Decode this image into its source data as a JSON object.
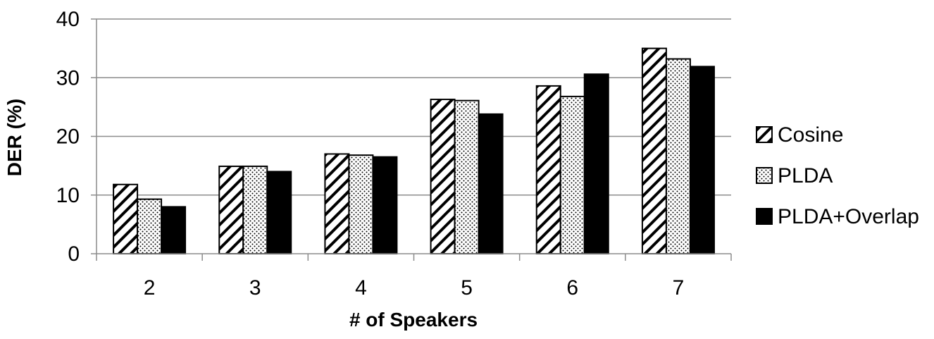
{
  "chart_data": {
    "type": "bar",
    "title": "",
    "xlabel": "# of Speakers",
    "ylabel": "DER (%)",
    "categories": [
      "2",
      "3",
      "4",
      "5",
      "6",
      "7"
    ],
    "ylim": [
      0,
      40
    ],
    "yticks": [
      0,
      10,
      20,
      30,
      40
    ],
    "grid": "horizontal",
    "legend": "right",
    "series": [
      {
        "name": "Cosine",
        "pattern": "diagonal-hatch",
        "values": [
          11.8,
          14.9,
          17.0,
          26.3,
          28.6,
          35.0
        ]
      },
      {
        "name": "PLDA",
        "pattern": "dotted",
        "values": [
          9.3,
          14.9,
          16.8,
          26.1,
          26.8,
          33.2
        ]
      },
      {
        "name": "PLDA+Overlap",
        "pattern": "solid-black",
        "values": [
          8.0,
          14.0,
          16.5,
          23.8,
          30.6,
          31.9
        ]
      }
    ]
  }
}
